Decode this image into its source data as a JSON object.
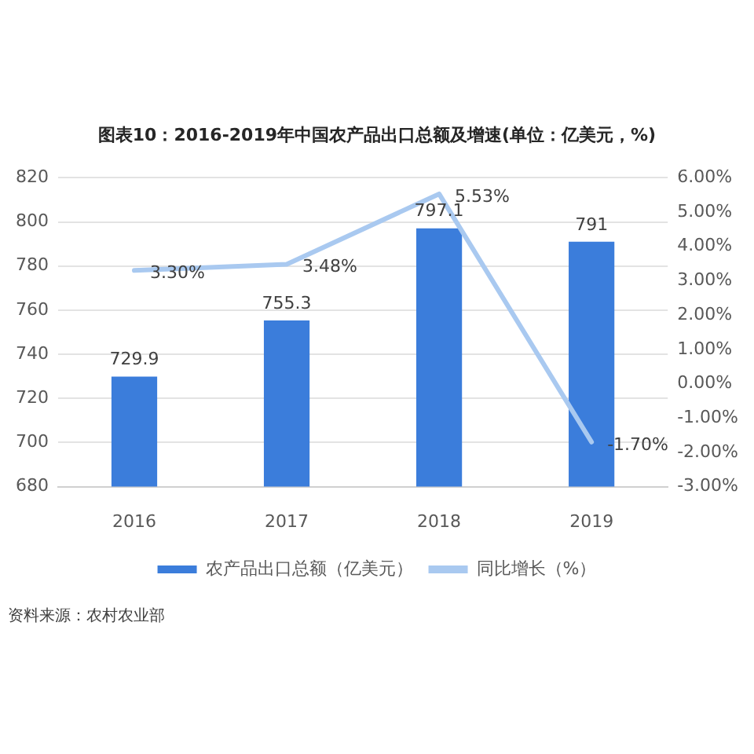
{
  "chart_data": {
    "type": "bar",
    "title": "图表10：2016-2019年中国农产品出口总额及增速(单位：亿美元，%)",
    "categories": [
      "2016",
      "2017",
      "2018",
      "2019"
    ],
    "series": [
      {
        "name": "农产品出口总额（亿美元）",
        "color": "#3b7ddb",
        "values": [
          729.9,
          755.3,
          797.1,
          791
        ],
        "value_labels": [
          "729.9",
          "755.3",
          "797.1",
          "791"
        ]
      },
      {
        "name": "同比增长（%）",
        "type": "line",
        "axis": "y2",
        "color": "#a9c9f0",
        "values": [
          3.3,
          3.48,
          5.53,
          -1.7
        ],
        "value_labels": [
          "3.30%",
          "3.48%",
          "5.53%",
          "-1.70%"
        ]
      }
    ],
    "ylim": [
      680,
      820
    ],
    "yticks": [
      680,
      700,
      720,
      740,
      760,
      780,
      800,
      820
    ],
    "y2lim": [
      -3,
      6
    ],
    "y2ticks": [
      {
        "value": -3,
        "label": "-3.00%"
      },
      {
        "value": -2,
        "label": "-2.00%"
      },
      {
        "value": -1,
        "label": "-1.00%"
      },
      {
        "value": 0,
        "label": "0.00%"
      },
      {
        "value": 1,
        "label": "1.00%"
      },
      {
        "value": 2,
        "label": "2.00%"
      },
      {
        "value": 3,
        "label": "3.00%"
      },
      {
        "value": 4,
        "label": "4.00%"
      },
      {
        "value": 5,
        "label": "5.00%"
      },
      {
        "value": 6,
        "label": "6.00%"
      }
    ],
    "grid": "y",
    "legend": "bottom",
    "marker": "none",
    "line_style": "solid",
    "annotations": [
      "资料来源：农村农业部"
    ]
  }
}
